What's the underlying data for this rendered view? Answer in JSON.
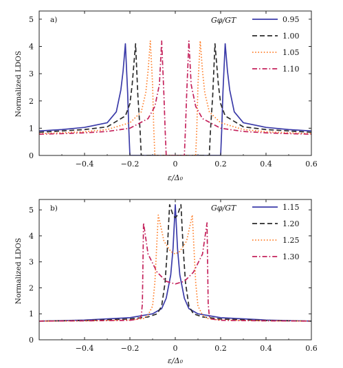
{
  "chart_data": [
    {
      "type": "line",
      "panel_label": "a)",
      "xlabel": "ε/Δ₀",
      "ylabel": "Normalized LDOS",
      "xlim": [
        -0.6,
        0.6
      ],
      "ylim": [
        0,
        5.3
      ],
      "xticks": [
        "-0.4",
        "-0.2",
        "0",
        "0.2",
        "0.4",
        "0.6"
      ],
      "yticks": [
        "0",
        "1",
        "2",
        "3",
        "4",
        "5"
      ],
      "legend_title": "Gφ/GT",
      "legend_position": "top-right",
      "grid": false,
      "series": [
        {
          "name": "0.95",
          "color": "#3a3aa8",
          "dash": "solid",
          "x": [
            -0.6,
            -0.5,
            -0.4,
            -0.3,
            -0.26,
            -0.24,
            -0.23,
            -0.22,
            -0.21,
            -0.205,
            -0.2,
            0.2,
            0.205,
            0.21,
            0.22,
            0.23,
            0.24,
            0.26,
            0.3,
            0.4,
            0.5,
            0.6
          ],
          "y": [
            0.9,
            0.95,
            1.03,
            1.2,
            1.6,
            2.4,
            3.1,
            4.1,
            2.3,
            1.0,
            0,
            0,
            1.0,
            2.3,
            4.1,
            3.1,
            2.4,
            1.6,
            1.2,
            1.03,
            0.95,
            0.9
          ]
        },
        {
          "name": "1.00",
          "color": "#2a2a2a",
          "dash": "dashed",
          "x": [
            -0.6,
            -0.5,
            -0.4,
            -0.3,
            -0.22,
            -0.2,
            -0.19,
            -0.175,
            -0.165,
            -0.155,
            -0.15,
            0.15,
            0.155,
            0.165,
            0.175,
            0.19,
            0.2,
            0.22,
            0.3,
            0.4,
            0.5,
            0.6
          ],
          "y": [
            0.85,
            0.9,
            0.95,
            1.05,
            1.45,
            1.9,
            2.6,
            4.1,
            2.2,
            0.9,
            0,
            0,
            0.9,
            2.2,
            4.1,
            2.6,
            1.9,
            1.45,
            1.05,
            0.95,
            0.9,
            0.85
          ]
        },
        {
          "name": "1.05",
          "color": "#ff7f2a",
          "dash": "dotted",
          "x": [
            -0.6,
            -0.5,
            -0.4,
            -0.3,
            -0.2,
            -0.15,
            -0.13,
            -0.12,
            -0.11,
            -0.1,
            -0.095,
            -0.09,
            0.09,
            0.095,
            0.1,
            0.11,
            0.12,
            0.13,
            0.15,
            0.2,
            0.3,
            0.4,
            0.5,
            0.6
          ],
          "y": [
            0.8,
            0.83,
            0.87,
            0.95,
            1.2,
            1.6,
            2.3,
            3.1,
            4.2,
            2.6,
            1.0,
            0,
            0,
            1.0,
            2.6,
            4.2,
            3.1,
            2.3,
            1.6,
            1.2,
            0.95,
            0.87,
            0.83,
            0.8
          ]
        },
        {
          "name": "1.10",
          "color": "#c4215b",
          "dash": "dashdot",
          "x": [
            -0.6,
            -0.5,
            -0.4,
            -0.3,
            -0.2,
            -0.12,
            -0.09,
            -0.07,
            -0.06,
            -0.05,
            -0.045,
            -0.04,
            0.04,
            0.045,
            0.05,
            0.06,
            0.07,
            0.09,
            0.12,
            0.2,
            0.3,
            0.4,
            0.5,
            0.6
          ],
          "y": [
            0.78,
            0.8,
            0.83,
            0.88,
            1.0,
            1.35,
            1.8,
            2.6,
            4.2,
            2.2,
            1.0,
            0,
            0,
            1.0,
            2.2,
            4.2,
            2.6,
            1.8,
            1.35,
            1.0,
            0.88,
            0.83,
            0.8,
            0.78
          ]
        }
      ]
    },
    {
      "type": "line",
      "panel_label": "b)",
      "xlabel": "ε/Δ₀",
      "ylabel": "Normalized LDOS",
      "xlim": [
        -0.6,
        0.6
      ],
      "ylim": [
        0,
        5.4
      ],
      "xticks": [
        "-0.4",
        "-0.2",
        "0",
        "0.2",
        "0.4",
        "0.6"
      ],
      "yticks": [
        "0",
        "1",
        "2",
        "3",
        "4",
        "5"
      ],
      "legend_title": "Gφ/GT",
      "legend_position": "top-right",
      "grid": false,
      "series": [
        {
          "name": "1.15",
          "color": "#3a3aa8",
          "dash": "solid",
          "x": [
            -0.6,
            -0.4,
            -0.2,
            -0.1,
            -0.06,
            -0.04,
            -0.02,
            -0.01,
            0,
            0.01,
            0.02,
            0.04,
            0.06,
            0.1,
            0.2,
            0.4,
            0.6
          ],
          "y": [
            0.72,
            0.76,
            0.85,
            1.0,
            1.2,
            1.6,
            2.5,
            3.5,
            5.2,
            3.5,
            2.5,
            1.6,
            1.2,
            1.0,
            0.85,
            0.76,
            0.72
          ]
        },
        {
          "name": "1.20",
          "color": "#2a2a2a",
          "dash": "dashed",
          "x": [
            -0.6,
            -0.4,
            -0.2,
            -0.12,
            -0.08,
            -0.06,
            -0.045,
            -0.035,
            -0.025,
            -0.01,
            0,
            0.01,
            0.025,
            0.035,
            0.045,
            0.06,
            0.08,
            0.12,
            0.2,
            0.4,
            0.6
          ],
          "y": [
            0.72,
            0.74,
            0.8,
            0.88,
            1.0,
            1.3,
            2.2,
            3.5,
            5.2,
            4.8,
            4.7,
            4.8,
            5.2,
            3.5,
            2.2,
            1.3,
            1.0,
            0.88,
            0.8,
            0.74,
            0.72
          ]
        },
        {
          "name": "1.25",
          "color": "#ff7f2a",
          "dash": "dotted",
          "x": [
            -0.6,
            -0.4,
            -0.2,
            -0.14,
            -0.12,
            -0.1,
            -0.09,
            -0.075,
            -0.05,
            -0.02,
            0,
            0.02,
            0.05,
            0.075,
            0.09,
            0.1,
            0.12,
            0.14,
            0.2,
            0.4,
            0.6
          ],
          "y": [
            0.72,
            0.73,
            0.76,
            0.82,
            0.95,
            1.3,
            2.2,
            4.8,
            3.8,
            3.4,
            3.3,
            3.4,
            3.8,
            4.8,
            2.2,
            1.3,
            0.95,
            0.82,
            0.76,
            0.73,
            0.72
          ]
        },
        {
          "name": "1.30",
          "color": "#c4215b",
          "dash": "dashdot",
          "x": [
            -0.6,
            -0.4,
            -0.2,
            -0.16,
            -0.15,
            -0.145,
            -0.14,
            -0.12,
            -0.08,
            -0.04,
            0,
            0.04,
            0.08,
            0.12,
            0.14,
            0.145,
            0.15,
            0.16,
            0.2,
            0.4,
            0.6
          ],
          "y": [
            0.72,
            0.73,
            0.75,
            0.8,
            0.9,
            1.4,
            4.5,
            3.3,
            2.6,
            2.25,
            2.15,
            2.25,
            2.6,
            3.3,
            4.5,
            1.4,
            0.9,
            0.8,
            0.75,
            0.73,
            0.72
          ]
        }
      ]
    }
  ]
}
